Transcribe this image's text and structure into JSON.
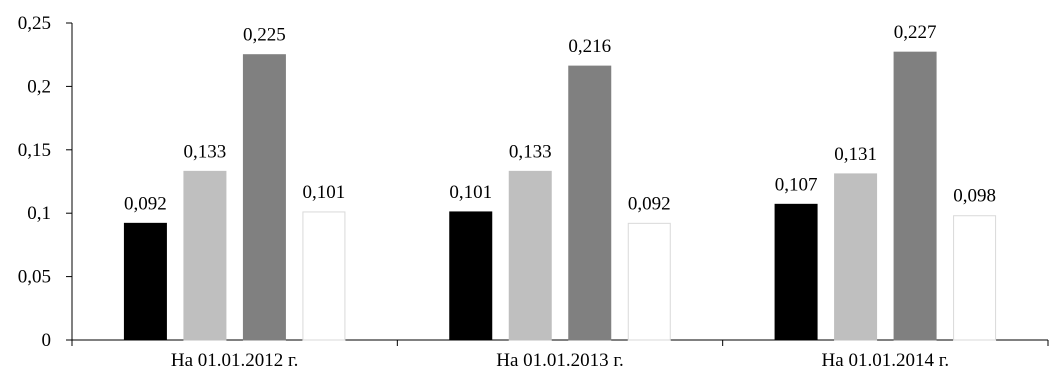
{
  "chart_data": {
    "type": "bar",
    "title": "",
    "xlabel": "",
    "ylabel": "",
    "categories": [
      "На 01.01.2012 г.",
      "На 01.01.2013 г.",
      "На 01.01.2014 г."
    ],
    "series": [
      {
        "values": [
          0.092,
          0.101,
          0.107
        ],
        "labels": [
          "0,092",
          "0,101",
          "0,107"
        ],
        "color": "#000000"
      },
      {
        "values": [
          0.133,
          0.133,
          0.131
        ],
        "labels": [
          "0,133",
          "0,133",
          "0,131"
        ],
        "color": "#bfbfbf"
      },
      {
        "values": [
          0.225,
          0.216,
          0.227
        ],
        "labels": [
          "0,225",
          "0,216",
          "0,227"
        ],
        "color": "#808080"
      },
      {
        "values": [
          0.101,
          0.092,
          0.098
        ],
        "labels": [
          "0,101",
          "0,092",
          "0,098"
        ],
        "color": "#ffffff"
      }
    ],
    "ylim": [
      0,
      0.25
    ],
    "yticks": [
      0,
      0.05,
      0.1,
      0.15,
      0.2,
      0.25
    ],
    "ytick_labels": [
      "0",
      "0,05",
      "0,1",
      "0,15",
      "0,2",
      "0,25"
    ],
    "grid": false,
    "legend": "none"
  }
}
